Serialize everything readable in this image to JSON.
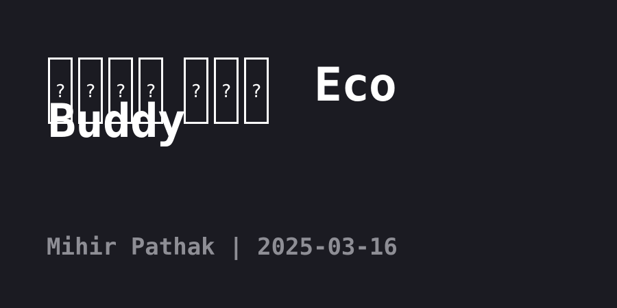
{
  "title": {
    "unrendered_glyph_groups": [
      4,
      3
    ],
    "placeholder_char": "?",
    "word_1": "Eco",
    "word_2": "Buddy"
  },
  "meta": {
    "author": "Mihir Pathak",
    "separator": "|",
    "date": "2025-03-16"
  }
}
